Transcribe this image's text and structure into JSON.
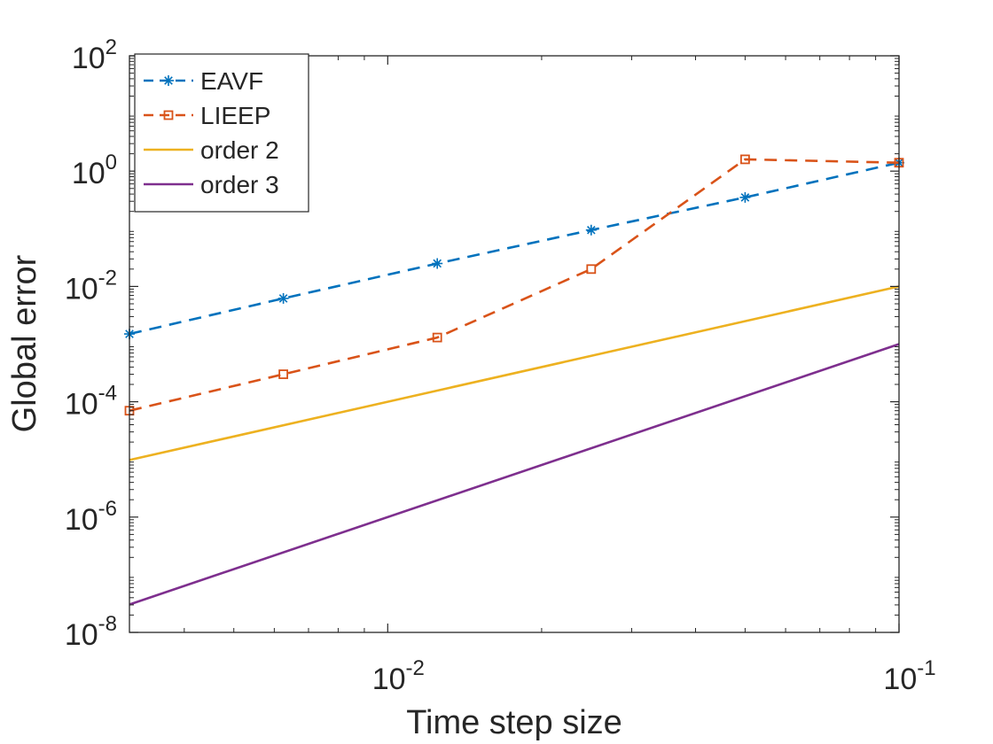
{
  "chart_data": {
    "type": "line",
    "xlabel": "Time step size",
    "ylabel": "Global error",
    "xscale": "log",
    "yscale": "log",
    "xlim": [
      0.003125,
      0.1
    ],
    "ylim": [
      1e-08,
      100
    ],
    "grid": false,
    "legend_position": "top-left",
    "x_ticks": [
      {
        "value": 0.01,
        "base": "10",
        "exp": "-2"
      },
      {
        "value": 0.1,
        "base": "10",
        "exp": "-1"
      }
    ],
    "y_ticks": [
      {
        "value": 1e-08,
        "base": "10",
        "exp": "-8"
      },
      {
        "value": 1e-06,
        "base": "10",
        "exp": "-6"
      },
      {
        "value": 0.0001,
        "base": "10",
        "exp": "-4"
      },
      {
        "value": 0.01,
        "base": "10",
        "exp": "-2"
      },
      {
        "value": 1,
        "base": "10",
        "exp": "0"
      },
      {
        "value": 100,
        "base": "10",
        "exp": "2"
      }
    ],
    "series": [
      {
        "name": "EAVF",
        "color": "#0072BD",
        "line_style": "dashed",
        "marker": "asterisk",
        "x": [
          0.003125,
          0.00625,
          0.0125,
          0.025,
          0.05,
          0.1
        ],
        "y": [
          0.0015,
          0.0062,
          0.025,
          0.095,
          0.35,
          1.4
        ]
      },
      {
        "name": "LIEEP",
        "color": "#D95319",
        "line_style": "dashed",
        "marker": "square",
        "x": [
          0.003125,
          0.00625,
          0.0125,
          0.025,
          0.05,
          0.1
        ],
        "y": [
          7e-05,
          0.0003,
          0.0013,
          0.02,
          1.6,
          1.4
        ]
      },
      {
        "name": "order 2",
        "color": "#EDB120",
        "line_style": "solid",
        "marker": "none",
        "x": [
          0.003125,
          0.1
        ],
        "y": [
          9.7656e-06,
          0.01
        ]
      },
      {
        "name": "order 3",
        "color": "#7E2F8E",
        "line_style": "solid",
        "marker": "none",
        "x": [
          0.003125,
          0.1
        ],
        "y": [
          3.0518e-08,
          0.001
        ]
      }
    ]
  }
}
